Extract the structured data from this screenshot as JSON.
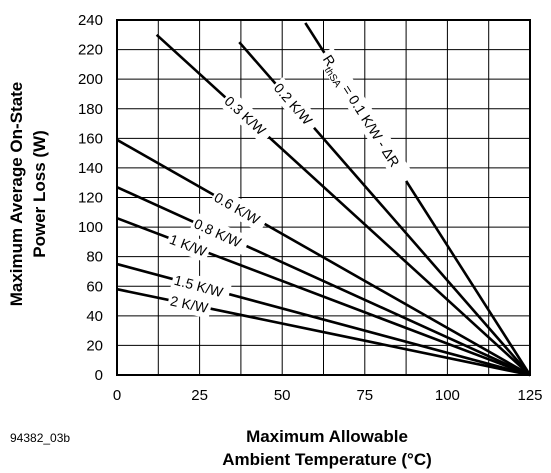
{
  "figure_id": "94382_03b",
  "chart_data": {
    "type": "line",
    "xlabel": [
      "Maximum Allowable",
      "Ambient Temperature (°C)"
    ],
    "ylabel": [
      "Maximum Average On-State",
      "Power Loss (W)"
    ],
    "xlim": [
      0,
      125
    ],
    "ylim": [
      0,
      240
    ],
    "x_ticks": [
      0,
      25,
      50,
      75,
      100,
      125
    ],
    "y_ticks": [
      0,
      20,
      40,
      60,
      80,
      100,
      120,
      140,
      160,
      180,
      200,
      220,
      240
    ],
    "grid": true,
    "series": [
      {
        "name": "RthSA = 0.1 K/W - ΔR",
        "x": [
          57,
          125
        ],
        "y": [
          238,
          0
        ]
      },
      {
        "name": "0.2 K/W",
        "x": [
          37,
          125
        ],
        "y": [
          225,
          0
        ]
      },
      {
        "name": "0.3 K/W",
        "x": [
          12,
          125
        ],
        "y": [
          230,
          0
        ]
      },
      {
        "name": "0.6 K/W",
        "x": [
          0,
          125
        ],
        "y": [
          159,
          0
        ]
      },
      {
        "name": "0.8 K/W",
        "x": [
          0,
          125
        ],
        "y": [
          127,
          0
        ]
      },
      {
        "name": "1 K/W",
        "x": [
          0,
          125
        ],
        "y": [
          106,
          0
        ]
      },
      {
        "name": "1.5 K/W",
        "x": [
          0,
          125
        ],
        "y": [
          75,
          0
        ]
      },
      {
        "name": "2 K/W",
        "x": [
          0,
          125
        ],
        "y": [
          58,
          0
        ]
      }
    ],
    "annotations": {
      "rth_prefix": "R",
      "rth_sub": "thSA",
      "rth_rest": " = 0.1 K/W - ΔR"
    }
  }
}
